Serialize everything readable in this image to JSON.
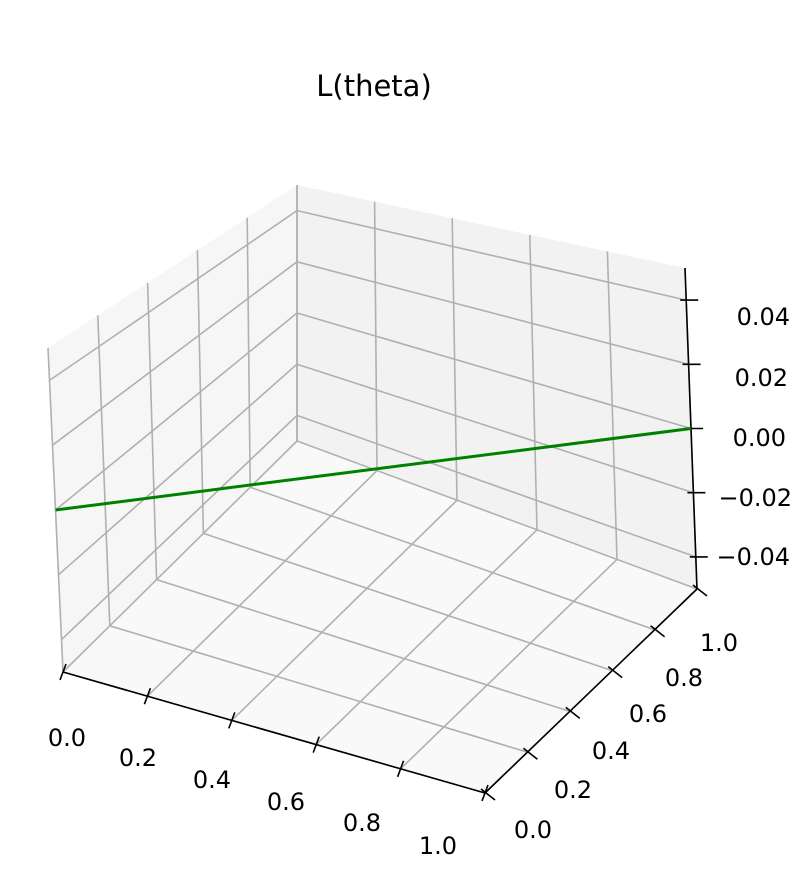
{
  "chart_data": {
    "type": "line",
    "projection": "3d",
    "title": "L(theta)",
    "xlabel": "",
    "ylabel": "",
    "zlabel": "",
    "xlim": [
      0.0,
      1.0
    ],
    "ylim": [
      0.0,
      1.0
    ],
    "zlim": [
      -0.05,
      0.05
    ],
    "x_ticks": [
      "0.0",
      "0.2",
      "0.4",
      "0.6",
      "0.8",
      "1.0"
    ],
    "y_ticks": [
      "0.0",
      "0.2",
      "0.4",
      "0.6",
      "0.8",
      "1.0"
    ],
    "z_ticks": [
      "−0.04",
      "−0.02",
      "0.00",
      "0.02",
      "0.04"
    ],
    "grid": true,
    "series": [
      {
        "color": "#008000",
        "points": [
          {
            "x": 0.0,
            "y": 0.0,
            "z": 0.0
          },
          {
            "x": 1.0,
            "y": 1.0,
            "z": 0.0
          }
        ]
      }
    ]
  }
}
